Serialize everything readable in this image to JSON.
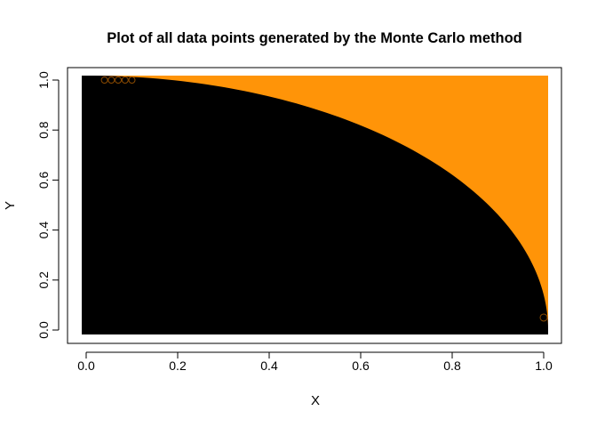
{
  "chart_data": {
    "type": "scatter",
    "title": "Plot of all data points generated by the Monte Carlo method",
    "xlabel": "X",
    "ylabel": "Y",
    "xlim": [
      0.0,
      1.0
    ],
    "ylim": [
      0.0,
      1.0
    ],
    "x_ticks": [
      "0.0",
      "0.2",
      "0.4",
      "0.6",
      "0.8",
      "1.0"
    ],
    "y_ticks": [
      "0.0",
      "0.2",
      "0.4",
      "0.6",
      "0.8",
      "1.0"
    ],
    "grid": false,
    "legend": "none",
    "regions": [
      {
        "points": "inside unit circle (x^2 + y^2 <= 1)",
        "color": "#000000"
      },
      {
        "points": "outside unit circle (x^2 + y^2 > 1)",
        "color": "#ff9408"
      }
    ]
  }
}
